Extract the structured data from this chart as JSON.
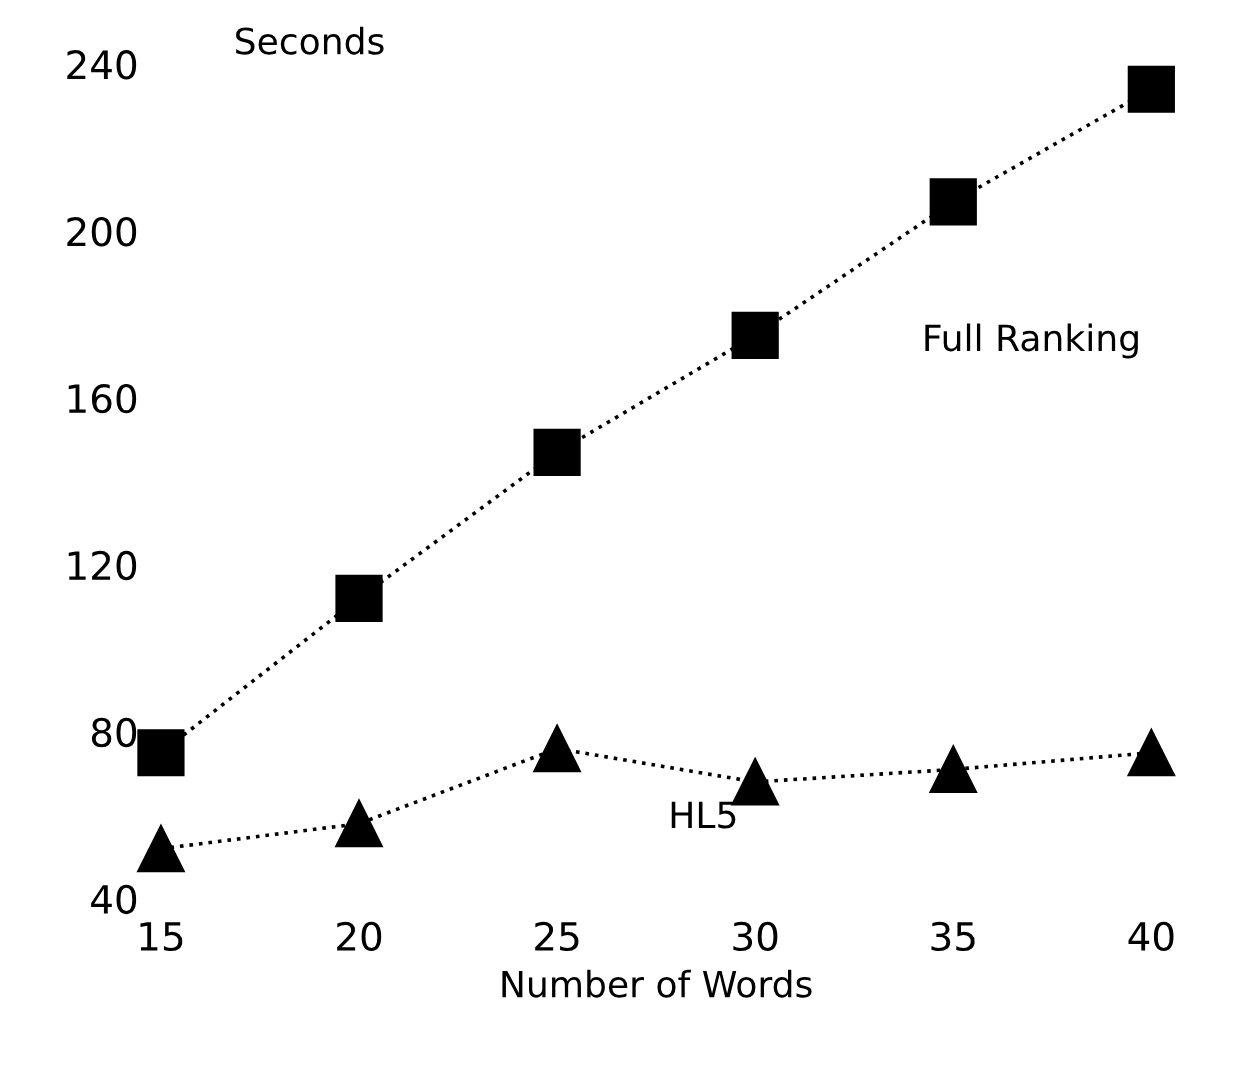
{
  "chart_data": {
    "type": "line",
    "xlabel": "Number of Words",
    "ylabel": "Seconds",
    "x": [
      15,
      20,
      25,
      30,
      35,
      40
    ],
    "series": [
      {
        "name": "Full Ranking",
        "color": "#000000",
        "marker": "square",
        "values": [
          75,
          112,
          147,
          175,
          207,
          234
        ]
      },
      {
        "name": "HL5",
        "color": "#000000",
        "marker": "triangle",
        "values": [
          52,
          58,
          76,
          68,
          71,
          75
        ]
      }
    ],
    "xlim": [
      15,
      40
    ],
    "ylim": [
      40,
      240
    ],
    "xticks": [
      15,
      20,
      25,
      30,
      35,
      40
    ],
    "yticks": [
      40,
      80,
      120,
      160,
      200,
      240
    ],
    "line_style": "dotted",
    "grid": false,
    "legend": false
  }
}
